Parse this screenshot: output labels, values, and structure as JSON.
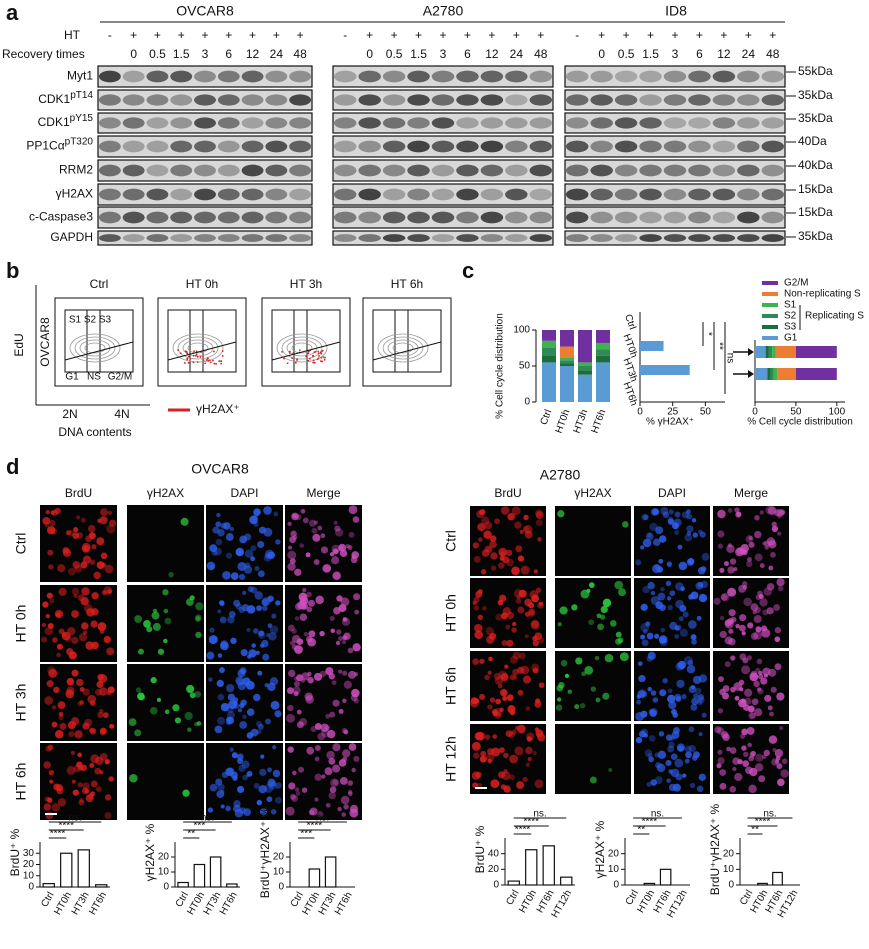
{
  "panel_a": {
    "label": "a",
    "cell_lines": [
      "OVCAR8",
      "A2780",
      "ID8"
    ],
    "ht_label": "HT",
    "ht_marks": [
      "-",
      "+",
      "+",
      "+",
      "+",
      "+",
      "+",
      "+",
      "+"
    ],
    "recovery_label": "Recovery times",
    "recovery_times": [
      "0",
      "0.5",
      "1.5",
      "3",
      "6",
      "12",
      "24",
      "48"
    ],
    "proteins": [
      {
        "name": "Myt1"
      },
      {
        "name": "CDK1",
        "sup": "pT14"
      },
      {
        "name": "CDK1",
        "sup": "pY15"
      },
      {
        "name": "PP1Cα",
        "sup": "pT320"
      },
      {
        "name": "RRM2"
      },
      {
        "name": "γH2AX"
      },
      {
        "name": "c-Caspase3"
      },
      {
        "name": "GAPDH"
      }
    ],
    "sizes": [
      "55kDa",
      "35kDa",
      "35kDa",
      "40Da",
      "40kDa",
      "15kDa",
      "15kDa",
      "35kDa"
    ]
  },
  "panel_b": {
    "label": "b",
    "titles": [
      "Ctrl",
      "HT 0h",
      "HT  3h",
      "HT 6h"
    ],
    "y_label": "EdU",
    "cell_line": "OVCAR8",
    "gates_top": [
      "S1",
      "S2",
      "S3"
    ],
    "gates_bottom": [
      "G1",
      "NS",
      "G2/M"
    ],
    "x_ticks": [
      "2N",
      "4N"
    ],
    "x_label": "DNA contents",
    "legend": "γH2AX⁺"
  },
  "panel_c": {
    "label": "c",
    "stacked": {
      "type": "stacked-bar",
      "y_label": "% Cell cycle distribution",
      "categories": [
        "Ctrl",
        "HT0h",
        "HT3h",
        "HT6h"
      ],
      "ylim": [
        0,
        100
      ],
      "yticks": [
        0,
        50,
        100
      ],
      "series": [
        {
          "color": "#5b9bd5",
          "values": [
            55,
            50,
            38,
            55
          ]
        },
        {
          "color": "#1b6e3a",
          "values": [
            10,
            4,
            6,
            9
          ]
        },
        {
          "color": "#2e8b57",
          "values": [
            10,
            4,
            6,
            9
          ]
        },
        {
          "color": "#3cb44b",
          "values": [
            10,
            4,
            5,
            9
          ]
        },
        {
          "color": "#ed7d31",
          "values": [
            0,
            15,
            0,
            0
          ]
        },
        {
          "color": "#7030a0",
          "values": [
            15,
            23,
            45,
            18
          ]
        }
      ]
    },
    "gamma": {
      "type": "horizontal-bar",
      "x_label": "% γH2AX⁺",
      "categories": [
        "Ctrl",
        "HT0h",
        "HT3h",
        "HT6h"
      ],
      "values": [
        0,
        18,
        38,
        0
      ],
      "xlim": [
        0,
        65
      ],
      "xticks": [
        0,
        25,
        50
      ],
      "color": "#5b9bd5",
      "significance": [
        "*",
        "**",
        "ns"
      ]
    },
    "recovery": {
      "type": "horizontal-stacked-bar",
      "x_label": "% Cell cycle distribution",
      "xlim": [
        0,
        110
      ],
      "xticks": [
        0,
        50,
        100
      ],
      "group_label": "Replicating S",
      "series": [
        {
          "name": "G2/M",
          "color": "#7030a0",
          "values": [
            50,
            50
          ]
        },
        {
          "name": "Non-replicating S",
          "color": "#ed7d31",
          "values": [
            25,
            23
          ]
        },
        {
          "name": "S1",
          "color": "#3cb44b",
          "values": [
            4,
            4
          ]
        },
        {
          "name": "S2",
          "color": "#2e8b57",
          "values": [
            4,
            4
          ]
        },
        {
          "name": "S3",
          "color": "#1b6e3a",
          "values": [
            4,
            4
          ]
        },
        {
          "name": "G1",
          "color": "#5b9bd5",
          "values": [
            13,
            15
          ]
        }
      ]
    }
  },
  "panel_d": {
    "label": "d",
    "groups": [
      {
        "cell_line": "OVCAR8",
        "channels": [
          "BrdU",
          "γH2AX",
          "DAPI",
          "Merge"
        ],
        "rows": [
          "Ctrl",
          "HT 0h",
          "HT 3h",
          "HT 6h"
        ],
        "charts": [
          {
            "type": "bar",
            "y_label": "BrdU⁺ %",
            "categories": [
              "Ctrl",
              "HT0h",
              "HT3h",
              "HT6h"
            ],
            "values": [
              3,
              30,
              33,
              2
            ],
            "ylim": [
              0,
              40
            ],
            "yticks": [
              0,
              10,
              20,
              30
            ],
            "significance": [
              "****",
              "****",
              "ns."
            ]
          },
          {
            "type": "bar",
            "y_label": "γH2AX⁺ %",
            "categories": [
              "Ctrl",
              "HT0h",
              "HT3h",
              "HT6h"
            ],
            "values": [
              3,
              15,
              20,
              2
            ],
            "ylim": [
              0,
              30
            ],
            "yticks": [
              0,
              10,
              20
            ],
            "significance": [
              "**",
              "***",
              "ns."
            ]
          },
          {
            "type": "bar",
            "y_label": "BrdU⁺γH2AX⁺ %",
            "categories": [
              "Ctrl",
              "HT0h",
              "HT3h",
              "HT6h"
            ],
            "values": [
              0,
              12,
              20,
              0
            ],
            "ylim": [
              0,
              30
            ],
            "yticks": [
              0,
              10,
              20
            ],
            "significance": [
              "***",
              "****",
              "ns."
            ]
          }
        ]
      },
      {
        "cell_line": "A2780",
        "channels": [
          "BrdU",
          "γH2AX",
          "DAPI",
          "Merge"
        ],
        "rows": [
          "Ctrl",
          "HT 0h",
          "HT 6h",
          "HT 12h"
        ],
        "charts": [
          {
            "type": "bar",
            "y_label": "BrdU⁺ %",
            "categories": [
              "Ctrl",
              "HT0h",
              "HT6h",
              "HT12h"
            ],
            "values": [
              5,
              45,
              50,
              10
            ],
            "ylim": [
              0,
              60
            ],
            "yticks": [
              0,
              20,
              40
            ],
            "significance": [
              "****",
              "****",
              "ns."
            ]
          },
          {
            "type": "bar",
            "y_label": "γH2AX⁺ %",
            "categories": [
              "Ctrl",
              "HT0h",
              "HT6h",
              "HT12h"
            ],
            "values": [
              0,
              1,
              10,
              0
            ],
            "ylim": [
              0,
              30
            ],
            "yticks": [
              0,
              10,
              20
            ],
            "significance": [
              "**",
              "****",
              "ns."
            ]
          },
          {
            "type": "bar",
            "y_label": "BrdU⁺γH2AX⁺ %",
            "categories": [
              "Ctrl",
              "HT0h",
              "HT6h",
              "HT12h"
            ],
            "values": [
              0,
              1,
              8,
              0
            ],
            "ylim": [
              0,
              30
            ],
            "yticks": [
              0,
              10,
              20
            ],
            "significance": [
              "**",
              "****",
              "ns."
            ]
          }
        ]
      }
    ]
  }
}
